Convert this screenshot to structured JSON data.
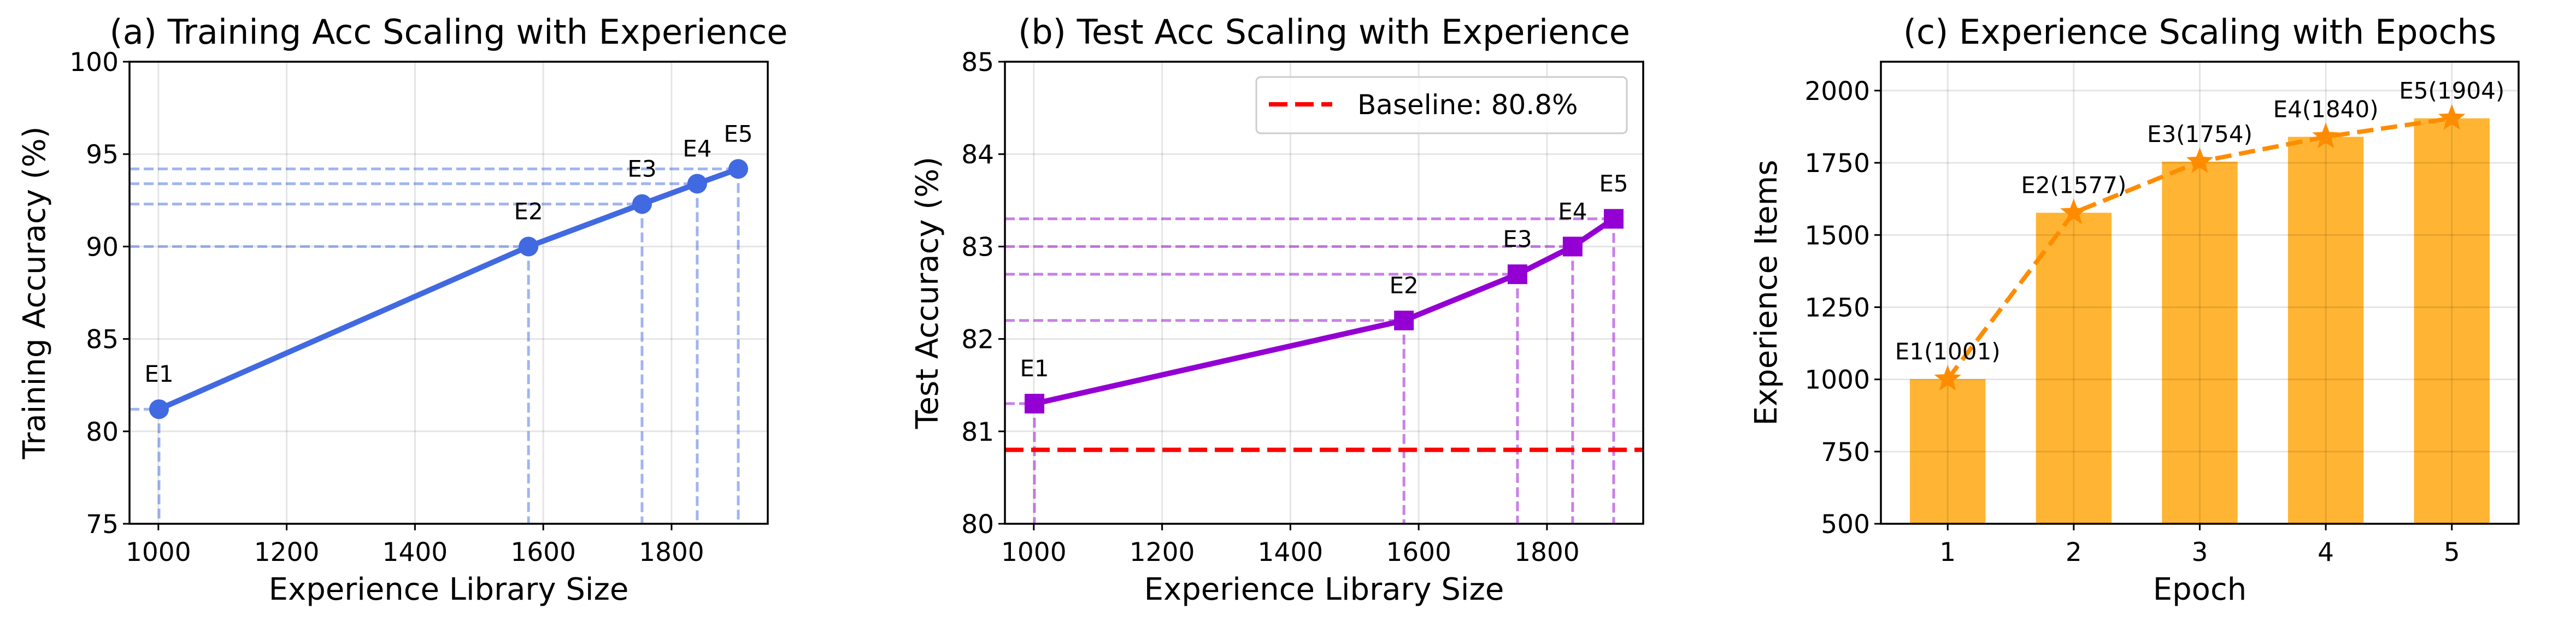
{
  "chart_data": [
    {
      "type": "line",
      "title": "(a) Training Acc Scaling with Experience",
      "xlabel": "Experience Library Size",
      "ylabel": "Training Accuracy (%)",
      "x": [
        1001,
        1577,
        1754,
        1840,
        1904
      ],
      "y": [
        81.2,
        90.0,
        92.3,
        93.4,
        94.2
      ],
      "point_labels": [
        "E1",
        "E2",
        "E3",
        "E4",
        "E5"
      ],
      "xlim": [
        955,
        1950
      ],
      "ylim": [
        75,
        100
      ],
      "xticks": [
        "1000",
        "1200",
        "1400",
        "1600",
        "1800"
      ],
      "yticks": [
        "75",
        "80",
        "85",
        "90",
        "95",
        "100"
      ],
      "color": "#4169E1",
      "marker": "circle",
      "guide_lines": "dashed",
      "grid": true
    },
    {
      "type": "line",
      "title": "(b) Test Acc Scaling with Experience",
      "xlabel": "Experience Library Size",
      "ylabel": "Test Accuracy (%)",
      "x": [
        1001,
        1577,
        1754,
        1840,
        1904
      ],
      "y": [
        81.3,
        82.2,
        82.7,
        83.0,
        83.3
      ],
      "point_labels": [
        "E1",
        "E2",
        "E3",
        "E4",
        "E5"
      ],
      "xlim": [
        955,
        1950
      ],
      "ylim": [
        80,
        85
      ],
      "xticks": [
        "1000",
        "1200",
        "1400",
        "1600",
        "1800"
      ],
      "yticks": [
        "80",
        "81",
        "82",
        "83",
        "84",
        "85"
      ],
      "color": "#9400D3",
      "marker": "square",
      "guide_lines": "dashed",
      "baseline": {
        "label": "Baseline: 80.8%",
        "value": 80.8,
        "color": "#FF0000"
      },
      "legend": "top-right",
      "grid": true
    },
    {
      "type": "bar",
      "title": "(c) Experience Scaling with Epochs",
      "xlabel": "Epoch",
      "ylabel": "Experience Items",
      "categories": [
        "1",
        "2",
        "3",
        "4",
        "5"
      ],
      "values": [
        1001,
        1577,
        1754,
        1840,
        1904
      ],
      "point_labels": [
        "E1(1001)",
        "E2(1577)",
        "E3(1754)",
        "E4(1840)",
        "E5(1904)"
      ],
      "xlim": [
        0.47,
        5.53
      ],
      "ylim": [
        500,
        2100
      ],
      "yticks": [
        "500",
        "750",
        "1000",
        "1250",
        "1500",
        "1750",
        "2000"
      ],
      "bar_color": "#FFB533",
      "line_color": "#FF8C00",
      "marker": "star",
      "line_style": "dashed",
      "grid": true
    }
  ]
}
